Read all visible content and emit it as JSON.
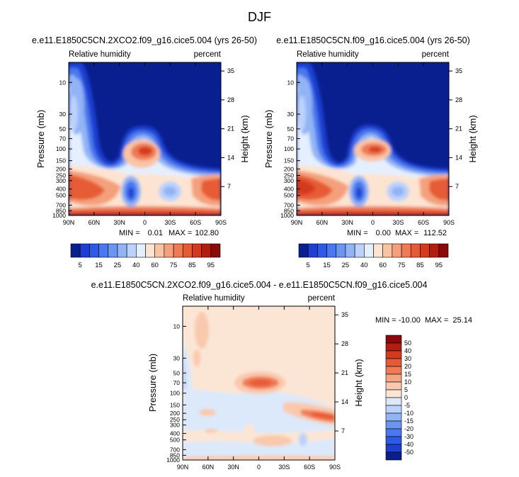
{
  "page_title": "DJF",
  "colors": {
    "rh": [
      "#0a1f8f",
      "#1f3fd0",
      "#2f5ae8",
      "#4a78ee",
      "#6a95f0",
      "#92b4f5",
      "#bcd2fb",
      "#e4efff",
      "#fde4d2",
      "#f9c4a4",
      "#f4a07c",
      "#ee7a56",
      "#e65b35",
      "#d43a1e",
      "#b51c10",
      "#8a0a0a"
    ],
    "diff": [
      "#0a1f8f",
      "#1f3fd0",
      "#2f5ae8",
      "#4a78ee",
      "#6a95f0",
      "#92b4f5",
      "#bcd2fb",
      "#dbe9fb",
      "#fbe6d6",
      "#f9c9ad",
      "#f4a584",
      "#ee7a56",
      "#e65b35",
      "#d43a1e",
      "#b51c10",
      "#8a0a0a"
    ]
  },
  "chart_data": [
    {
      "type": "heatmap",
      "title": "e.e11.E1850C5CN.2XCO2.f09_g16.cice5.004 (yrs 26-50)",
      "left_label": "Relative humidity",
      "right_label": "percent",
      "ylabel": "Pressure (mb)",
      "ylabel_right": "Height (km)",
      "xticks": [
        "90N",
        "60N",
        "30N",
        "0",
        "30S",
        "60S",
        "90S"
      ],
      "yticks": [
        "10",
        "30",
        "50",
        "70",
        "100",
        "150",
        "200",
        "250",
        "300",
        "400",
        "500",
        "700",
        "850",
        "1000"
      ],
      "height_ticks": [
        "35",
        "28",
        "21",
        "14",
        "7"
      ],
      "stats": {
        "min_label": "MIN =",
        "min": "0.01",
        "max_label": "MAX =",
        "max": "102.80"
      },
      "colorbar_labels": [
        "5",
        "15",
        "25",
        "40",
        "60",
        "75",
        "85",
        "95"
      ]
    },
    {
      "type": "heatmap",
      "title": "e.e11.E1850C5CN.f09_g16.cice5.004 (yrs 26-50)",
      "left_label": "Relative humidity",
      "right_label": "percent",
      "ylabel": "Pressure (mb)",
      "ylabel_right": "Height (km)",
      "xticks": [
        "90N",
        "60N",
        "30N",
        "0",
        "30S",
        "60S",
        "90S"
      ],
      "yticks": [
        "10",
        "30",
        "50",
        "70",
        "100",
        "150",
        "200",
        "250",
        "300",
        "400",
        "500",
        "700",
        "850",
        "1000"
      ],
      "height_ticks": [
        "35",
        "28",
        "21",
        "14",
        "7"
      ],
      "stats": {
        "min_label": "MIN =",
        "min": "0.00",
        "max_label": "MAX =",
        "max": "112.52"
      },
      "colorbar_labels": [
        "5",
        "15",
        "25",
        "40",
        "60",
        "75",
        "85",
        "95"
      ]
    },
    {
      "type": "heatmap",
      "title": "e.e11.E1850C5CN.2XCO2.f09_g16.cice5.004 - e.e11.E1850C5CN.f09_g16.cice5.004",
      "left_label": "Relative humidity",
      "right_label": "percent",
      "ylabel": "Pressure (mb)",
      "ylabel_right": "Height (km)",
      "xticks": [
        "90N",
        "60N",
        "30N",
        "0",
        "30S",
        "60S",
        "90S"
      ],
      "yticks": [
        "10",
        "30",
        "50",
        "70",
        "100",
        "150",
        "200",
        "250",
        "300",
        "400",
        "500",
        "700",
        "850",
        "1000"
      ],
      "height_ticks": [
        "35",
        "28",
        "21",
        "14",
        "7"
      ],
      "stats_text": "MIN = -10.00  MAX =  25.14",
      "colorbar_labels": [
        "50",
        "40",
        "30",
        "20",
        "15",
        "10",
        "5",
        "0",
        "-5",
        "-10",
        "-15",
        "-20",
        "-30",
        "-40",
        "-50"
      ]
    }
  ]
}
